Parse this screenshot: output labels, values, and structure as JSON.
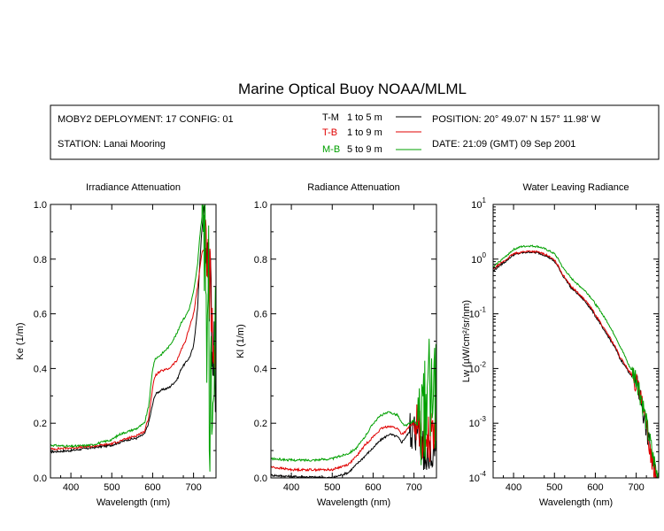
{
  "title": "Marine Optical Buoy NOAA/MLML",
  "info": {
    "deployment": "MOBY2 DEPLOYMENT: 17 CONFIG: 01",
    "station": "STATION: Lanai Mooring",
    "position": "POSITION: 20° 49.07' N   157° 11.98' W",
    "date": "DATE: 21:09 (GMT) 09 Sep 2001"
  },
  "legend": [
    {
      "code": "T-M",
      "depth": "1 to 5  m",
      "color": "#000000"
    },
    {
      "code": "T-B",
      "depth": "1 to 9  m",
      "color": "#e00000"
    },
    {
      "code": "M-B",
      "depth": "5 to 9  m",
      "color": "#00a000"
    }
  ],
  "chart_data": [
    {
      "type": "line",
      "title": "Irradiance Attenuation",
      "xlabel": "Wavelength (nm)",
      "ylabel": "Ke  (1/m)",
      "xlim": [
        350,
        755
      ],
      "ylim": [
        0,
        1
      ],
      "xticks": [
        400,
        500,
        600,
        700
      ],
      "yticks": [
        "0.0",
        "0.2",
        "0.4",
        "0.6",
        "0.8",
        "1.0"
      ],
      "series": [
        {
          "name": "T-M",
          "color": "#000000",
          "x": [
            350,
            400,
            450,
            500,
            520,
            540,
            560,
            580,
            590,
            600,
            605,
            610,
            620,
            640,
            660,
            670,
            680,
            690,
            700,
            710,
            715,
            720,
            725,
            730,
            740,
            750
          ],
          "y": [
            0.095,
            0.1,
            0.11,
            0.12,
            0.13,
            0.14,
            0.145,
            0.16,
            0.2,
            0.27,
            0.3,
            0.31,
            0.32,
            0.33,
            0.36,
            0.4,
            0.42,
            0.44,
            0.48,
            0.62,
            0.78,
            0.9,
            0.98,
            0.85,
            0.7,
            0.42
          ],
          "noise_from": 725,
          "noise_amp": 0.18
        },
        {
          "name": "T-B",
          "color": "#e00000",
          "x": [
            350,
            400,
            450,
            500,
            520,
            540,
            560,
            580,
            590,
            600,
            605,
            610,
            620,
            640,
            660,
            670,
            680,
            690,
            700,
            710,
            715,
            720,
            725,
            730,
            740,
            750
          ],
          "y": [
            0.105,
            0.11,
            0.115,
            0.125,
            0.135,
            0.145,
            0.155,
            0.17,
            0.22,
            0.33,
            0.37,
            0.38,
            0.39,
            0.4,
            0.43,
            0.47,
            0.5,
            0.55,
            0.6,
            0.7,
            0.76,
            0.82,
            0.84,
            0.8,
            0.7,
            0.44
          ],
          "noise_from": 725,
          "noise_amp": 0.14
        },
        {
          "name": "M-B",
          "color": "#00a000",
          "x": [
            350,
            400,
            450,
            500,
            520,
            540,
            560,
            580,
            590,
            600,
            605,
            610,
            620,
            640,
            660,
            670,
            680,
            690,
            700,
            710,
            715,
            720,
            725,
            730,
            740,
            750
          ],
          "y": [
            0.12,
            0.115,
            0.12,
            0.14,
            0.16,
            0.17,
            0.18,
            0.2,
            0.26,
            0.4,
            0.43,
            0.44,
            0.45,
            0.48,
            0.53,
            0.57,
            0.59,
            0.62,
            0.68,
            0.78,
            0.88,
            0.95,
            1.0,
            0.8,
            0.4,
            0.38
          ],
          "noise_from": 722,
          "noise_amp": 0.45
        }
      ]
    },
    {
      "type": "line",
      "title": "Radiance Attenuation",
      "xlabel": "Wavelength (nm)",
      "ylabel": "Kl  (1/m)",
      "xlim": [
        350,
        755
      ],
      "ylim": [
        0,
        1
      ],
      "xticks": [
        400,
        500,
        600,
        700
      ],
      "yticks": [
        "0.0",
        "0.2",
        "0.4",
        "0.6",
        "0.8",
        "1.0"
      ],
      "series": [
        {
          "name": "T-M",
          "color": "#000000",
          "x": [
            350,
            400,
            450,
            500,
            520,
            540,
            560,
            580,
            600,
            620,
            640,
            660,
            670,
            680,
            690,
            700,
            710,
            720,
            730,
            740,
            750
          ],
          "y": [
            0.01,
            0.005,
            0.003,
            0.0,
            0.01,
            0.02,
            0.05,
            0.08,
            0.11,
            0.14,
            0.16,
            0.15,
            0.13,
            0.15,
            0.17,
            0.18,
            0.15,
            0.1,
            0.07,
            0.08,
            0.12
          ],
          "noise_from": 690,
          "noise_amp": 0.08
        },
        {
          "name": "T-B",
          "color": "#e00000",
          "x": [
            350,
            400,
            450,
            500,
            520,
            540,
            560,
            580,
            600,
            620,
            640,
            660,
            670,
            680,
            690,
            700,
            710,
            720,
            730,
            740,
            750
          ],
          "y": [
            0.04,
            0.03,
            0.03,
            0.03,
            0.04,
            0.05,
            0.08,
            0.12,
            0.15,
            0.18,
            0.19,
            0.18,
            0.16,
            0.17,
            0.19,
            0.2,
            0.18,
            0.15,
            0.13,
            0.15,
            0.18
          ],
          "noise_from": 700,
          "noise_amp": 0.09
        },
        {
          "name": "M-B",
          "color": "#00a000",
          "x": [
            350,
            400,
            450,
            500,
            520,
            540,
            560,
            580,
            600,
            620,
            640,
            660,
            670,
            680,
            690,
            700,
            710,
            720,
            730,
            740,
            750
          ],
          "y": [
            0.07,
            0.065,
            0.065,
            0.07,
            0.08,
            0.09,
            0.11,
            0.15,
            0.2,
            0.23,
            0.24,
            0.23,
            0.2,
            0.19,
            0.2,
            0.21,
            0.19,
            0.2,
            0.26,
            0.35,
            0.3
          ],
          "noise_from": 710,
          "noise_amp": 0.2
        }
      ]
    },
    {
      "type": "line",
      "title": "Water Leaving Radiance",
      "xlabel": "Wavelength (nm)",
      "ylabel": "Lw  (µW/cm²/sr/nm)",
      "xlim": [
        350,
        755
      ],
      "ylim": [
        0.0001,
        10
      ],
      "yscale": "log",
      "xticks": [
        400,
        500,
        600,
        700
      ],
      "yticks": [
        "10^1",
        "10^0",
        "10^-1",
        "10^-2",
        "10^-3",
        "10^-4"
      ],
      "series": [
        {
          "name": "T-M",
          "color": "#000000",
          "x": [
            350,
            380,
            400,
            420,
            440,
            460,
            480,
            500,
            520,
            540,
            560,
            580,
            600,
            620,
            640,
            660,
            680,
            690,
            700,
            710,
            720,
            730,
            740,
            750
          ],
          "y": [
            0.6,
            0.9,
            1.2,
            1.3,
            1.35,
            1.3,
            1.15,
            0.9,
            0.5,
            0.3,
            0.22,
            0.15,
            0.09,
            0.05,
            0.03,
            0.015,
            0.009,
            0.007,
            0.006,
            0.003,
            0.0012,
            0.0005,
            0.0002,
            0.0001
          ],
          "noise_from": 350,
          "noise_amp": 0.0
        },
        {
          "name": "T-B",
          "color": "#e00000",
          "x": [
            350,
            380,
            400,
            420,
            440,
            460,
            480,
            500,
            520,
            540,
            560,
            580,
            600,
            620,
            640,
            660,
            680,
            690,
            700,
            710,
            720,
            730,
            740,
            750
          ],
          "y": [
            0.65,
            0.95,
            1.25,
            1.35,
            1.4,
            1.35,
            1.2,
            0.95,
            0.52,
            0.32,
            0.23,
            0.16,
            0.095,
            0.055,
            0.032,
            0.016,
            0.0095,
            0.0075,
            0.006,
            0.003,
            0.0012,
            0.0005,
            0.0002,
            0.0001
          ],
          "noise_from": 350,
          "noise_amp": 0.0
        },
        {
          "name": "M-B",
          "color": "#00a000",
          "x": [
            350,
            380,
            400,
            420,
            440,
            460,
            480,
            500,
            520,
            540,
            560,
            580,
            600,
            620,
            640,
            660,
            680,
            690,
            700,
            710,
            720,
            730,
            740,
            750
          ],
          "y": [
            0.7,
            1.1,
            1.5,
            1.7,
            1.75,
            1.7,
            1.5,
            1.25,
            0.7,
            0.45,
            0.33,
            0.24,
            0.15,
            0.09,
            0.05,
            0.025,
            0.012,
            0.009,
            0.007,
            0.0035,
            0.0015,
            0.0006,
            0.00025,
            0.00012
          ],
          "noise_from": 350,
          "noise_amp": 0.0
        }
      ]
    }
  ]
}
